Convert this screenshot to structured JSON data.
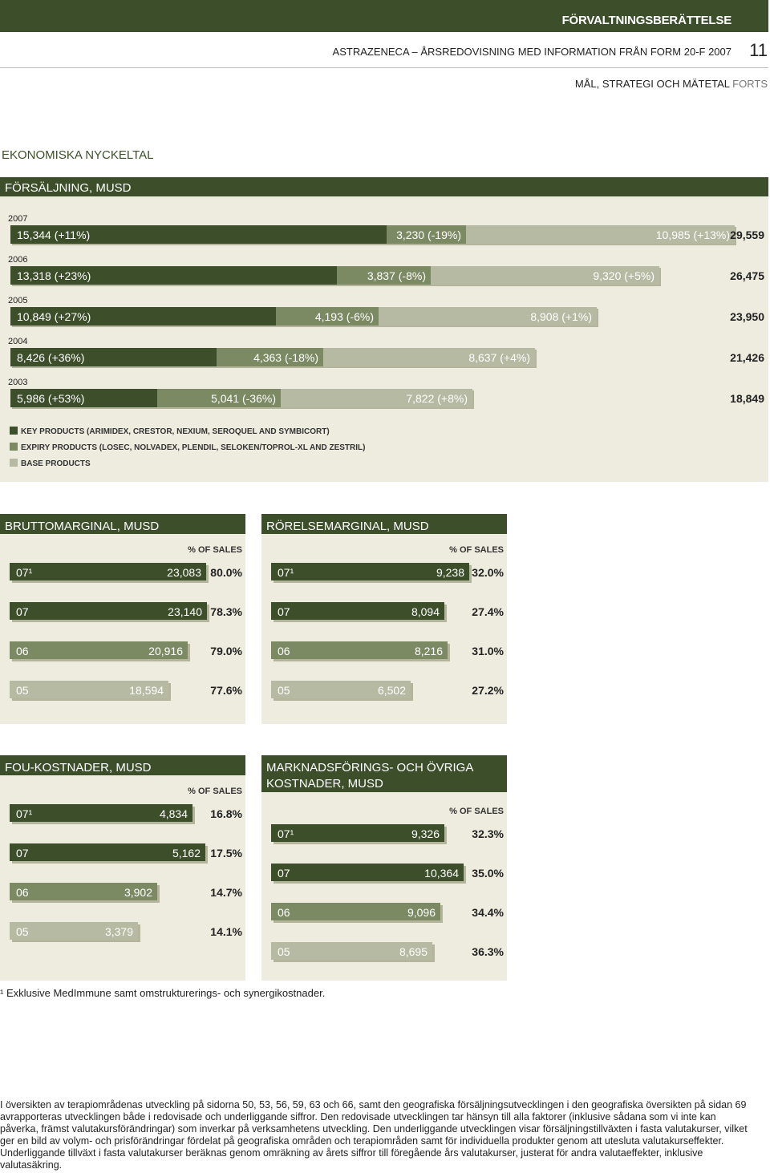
{
  "header": {
    "section": "FÖRVALTNINGSBERÄTTELSE",
    "doc_title": "ASTRAZENECA – ÅRSREDOVISNING MED INFORMATION FRÅN FORM 20-F 2007",
    "page_number": "11",
    "subtitle": "MÅL, STRATEGI OCH MÄTETAL",
    "subtitle_suffix": "FORTS",
    "main_heading": "EKONOMISKA NYCKELTAL"
  },
  "colors": {
    "key": "#3d4f2a",
    "expiry": "#7c8a64",
    "base": "#b6baa2",
    "panel": "#edecdf"
  },
  "sales_chart": {
    "title": "FÖRSÄLJNING, MUSD",
    "legend": [
      {
        "label": "KEY PRODUCTS (ARIMIDEX, CRESTOR, NEXIUM, SEROQUEL AND SYMBICORT)",
        "series": "key"
      },
      {
        "label": "EXPIRY PRODUCTS (LOSEC, NOLVADEX, PLENDIL, SELOKEN/TOPROL-XL AND ZESTRIL)",
        "series": "expiry"
      },
      {
        "label": "BASE PRODUCTS",
        "series": "base"
      }
    ]
  },
  "chart_data": [
    {
      "type": "bar",
      "stacked": true,
      "orientation": "horizontal",
      "title": "FÖRSÄLJNING, MUSD",
      "categories": [
        "2007",
        "2006",
        "2005",
        "2004",
        "2003"
      ],
      "series": [
        {
          "name": "Key products",
          "values": [
            15344,
            13318,
            10849,
            8426,
            5986
          ],
          "labels": [
            "15,344 (+11%)",
            "13,318 (+23%)",
            "10,849 (+27%)",
            "8,426 (+36%)",
            "5,986 (+53%)"
          ]
        },
        {
          "name": "Expiry products",
          "values": [
            3230,
            3837,
            4193,
            4363,
            5041
          ],
          "labels": [
            "3,230 (-19%)",
            "3,837 (-8%)",
            "4,193 (-6%)",
            "4,363 (-18%)",
            "5,041 (-36%)"
          ]
        },
        {
          "name": "Base products",
          "values": [
            10985,
            9320,
            8908,
            8637,
            7822
          ],
          "labels": [
            "10,985 (+13%)",
            "9,320 (+5%)",
            "8,908 (+1%)",
            "8,637 (+4%)",
            "7,822 (+8%)"
          ]
        }
      ],
      "totals": [
        "29,559",
        "26,475",
        "23,950",
        "21,426",
        "18,849"
      ]
    },
    {
      "type": "bar",
      "orientation": "horizontal",
      "title": "BRUTTOMARGINAL, MUSD",
      "pct_header": "% OF SALES",
      "categories": [
        "07¹",
        "07",
        "06",
        "05"
      ],
      "values": [
        23083,
        23140,
        20916,
        18594
      ],
      "value_labels": [
        "23,083",
        "23,140",
        "20,916",
        "18,594"
      ],
      "pct": [
        "80.0%",
        "78.3%",
        "79.0%",
        "77.6%"
      ]
    },
    {
      "type": "bar",
      "orientation": "horizontal",
      "title": "RÖRELSEMARGINAL, MUSD",
      "pct_header": "% OF SALES",
      "categories": [
        "07¹",
        "07",
        "06",
        "05"
      ],
      "values": [
        9238,
        8094,
        8216,
        6502
      ],
      "value_labels": [
        "9,238",
        "8,094",
        "8,216",
        "6,502"
      ],
      "pct": [
        "32.0%",
        "27.4%",
        "31.0%",
        "27.2%"
      ]
    },
    {
      "type": "bar",
      "orientation": "horizontal",
      "title": "FOU-KOSTNADER, MUSD",
      "pct_header": "% OF SALES",
      "categories": [
        "07¹",
        "07",
        "06",
        "05"
      ],
      "values": [
        4834,
        5162,
        3902,
        3379
      ],
      "value_labels": [
        "4,834",
        "5,162",
        "3,902",
        "3,379"
      ],
      "pct": [
        "16.8%",
        "17.5%",
        "14.7%",
        "14.1%"
      ]
    },
    {
      "type": "bar",
      "orientation": "horizontal",
      "title": "MARKNADSFÖRINGS- OCH ÖVRIGA KOSTNADER, MUSD",
      "title_lines": [
        "MARKNADSFÖRINGS- OCH ÖVRIGA",
        "KOSTNADER, MUSD"
      ],
      "pct_header": "% OF SALES",
      "categories": [
        "07¹",
        "07",
        "06",
        "05"
      ],
      "values": [
        9326,
        10364,
        9096,
        8695
      ],
      "value_labels": [
        "9,326",
        "10,364",
        "9,096",
        "8,695"
      ],
      "pct": [
        "32.3%",
        "35.0%",
        "34.4%",
        "36.3%"
      ]
    }
  ],
  "footnote": "¹ Exklusive MedImmune samt omstrukturerings- och synergikostnader.",
  "body_text": "I översikten av terapiområdenas utveckling på sidorna 50, 53, 56, 59, 63 och 66, samt den geografiska försäljningsutvecklingen i den geografiska översikten på sidan 69 avrapporteras utvecklingen både i redovisade och underliggande siffror. Den redovisade utvecklingen tar hänsyn till alla faktorer (inklusive sådana som vi inte kan påverka, främst valutakursförändringar) som inverkar på verksamhetens utveckling. Den underliggande utvecklingen visar försäljningstillväxten i fasta valutakurser, vilket ger en bild av volym- och prisförändringar fördelat på geografiska områden och terapiområden samt för individuella produkter genom att utesluta valutakurseffekter. Underliggande tillväxt i fasta valutakurser beräknas genom omräkning av årets siffror till föregående års valutakurser, justerat för andra valutaeffekter, inklusive valutasäkring."
}
